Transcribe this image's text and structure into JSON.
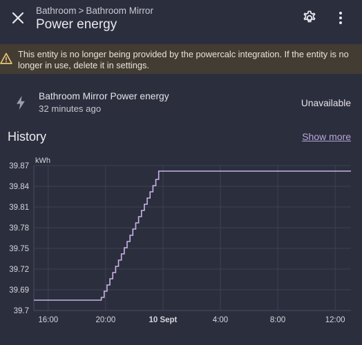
{
  "header": {
    "breadcrumb": [
      "Bathroom",
      "Bathroom Mirror"
    ],
    "breadcrumb_separator": ">",
    "title": "Power energy",
    "close_icon": "close-icon",
    "settings_icon": "gear-icon",
    "more_icon": "more-vertical-icon"
  },
  "warning": {
    "icon": "warning-icon",
    "text": "This entity is no longer being provided by the powercalc integration. If the entity is no longer in use, delete it in settings."
  },
  "entity": {
    "icon": "lightning-bolt-icon",
    "name": "Bathroom Mirror Power energy",
    "last_changed": "32 minutes ago",
    "state": "Unavailable"
  },
  "history": {
    "title": "History",
    "show_more": "Show more"
  },
  "colors": {
    "background": "#2b2e3d",
    "warning_background": "#433c33",
    "warning_icon": "#e9c77b",
    "accent": "#b9a6d8",
    "series_line": "#c9b3ea"
  },
  "chart_data": {
    "type": "line",
    "unit": "kWh",
    "ytick_labels": [
      "39.87",
      "39.84",
      "39.81",
      "39.78",
      "39.75",
      "39.72",
      "39.69",
      "39.7"
    ],
    "ytick_values": [
      39.87,
      39.84,
      39.81,
      39.78,
      39.75,
      39.72,
      39.69,
      39.66
    ],
    "ylim": [
      39.66,
      39.87
    ],
    "xtick_labels": [
      "16:00",
      "20:00",
      "10 Sept",
      "4:00",
      "8:00",
      "12:00"
    ],
    "xtick_hours": [
      16,
      20,
      24,
      28,
      32,
      36
    ],
    "xlim_hours": [
      15,
      37.1
    ],
    "grid": true,
    "series": [
      {
        "step": true,
        "x_hours": [
          15,
          19.5,
          19.7,
          19.9,
          20.1,
          20.3,
          20.5,
          20.7,
          20.9,
          21.1,
          21.3,
          21.5,
          21.7,
          21.9,
          22.1,
          22.3,
          22.5,
          22.7,
          22.9,
          23.1,
          23.3,
          23.5,
          23.7,
          37.1
        ],
        "values": [
          39.675,
          39.675,
          39.679,
          39.688,
          39.697,
          39.706,
          39.715,
          39.724,
          39.733,
          39.742,
          39.751,
          39.76,
          39.769,
          39.778,
          39.787,
          39.796,
          39.805,
          39.814,
          39.823,
          39.832,
          39.841,
          39.85,
          39.862,
          39.862
        ]
      }
    ]
  }
}
